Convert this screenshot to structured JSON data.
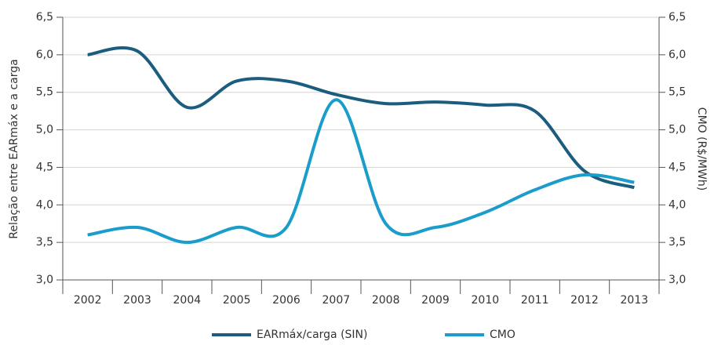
{
  "chart_data": {
    "type": "line",
    "categories": [
      "2002",
      "2003",
      "2004",
      "2005",
      "2006",
      "2007",
      "2008",
      "2009",
      "2010",
      "2011",
      "2012",
      "2013"
    ],
    "y_label": "Relação entre EARmáx e a carga",
    "y2_label": "CMO (R$/MWh)",
    "series": [
      {
        "name": "EARmáx/carga (SIN)",
        "color": "#1b5d7e",
        "values": [
          6.0,
          6.05,
          5.3,
          5.65,
          5.65,
          5.47,
          5.35,
          5.37,
          5.33,
          5.25,
          4.45,
          4.23
        ]
      },
      {
        "name": "CMO",
        "color": "#1a9dca",
        "axis": "y2",
        "values": [
          3.6,
          3.7,
          3.5,
          3.7,
          3.7,
          5.4,
          3.75,
          3.7,
          3.9,
          4.2,
          4.4,
          4.3
        ]
      }
    ],
    "ylim": [
      3.0,
      6.5
    ],
    "yticks": [
      {
        "value": 3.0,
        "label": "3,0"
      },
      {
        "value": 3.5,
        "label": "3,5"
      },
      {
        "value": 4.0,
        "label": "4,0"
      },
      {
        "value": 4.5,
        "label": "4,5"
      },
      {
        "value": 5.0,
        "label": "5,0"
      },
      {
        "value": 5.5,
        "label": "5,5"
      },
      {
        "value": 6.0,
        "label": "6,0"
      },
      {
        "value": 6.5,
        "label": "6,5"
      }
    ],
    "y2lim": [
      3.0,
      6.5
    ],
    "y2ticks": [
      {
        "value": 3.0,
        "label": "3,0"
      },
      {
        "value": 3.5,
        "label": "3,5"
      },
      {
        "value": 4.0,
        "label": "4,0"
      },
      {
        "value": 4.5,
        "label": "4,5"
      },
      {
        "value": 5.0,
        "label": "5,0"
      },
      {
        "value": 5.5,
        "label": "5,5"
      },
      {
        "value": 6.0,
        "label": "6,0"
      },
      {
        "value": 6.5,
        "label": "6,5"
      }
    ],
    "grid": true,
    "legend": "bottom"
  }
}
